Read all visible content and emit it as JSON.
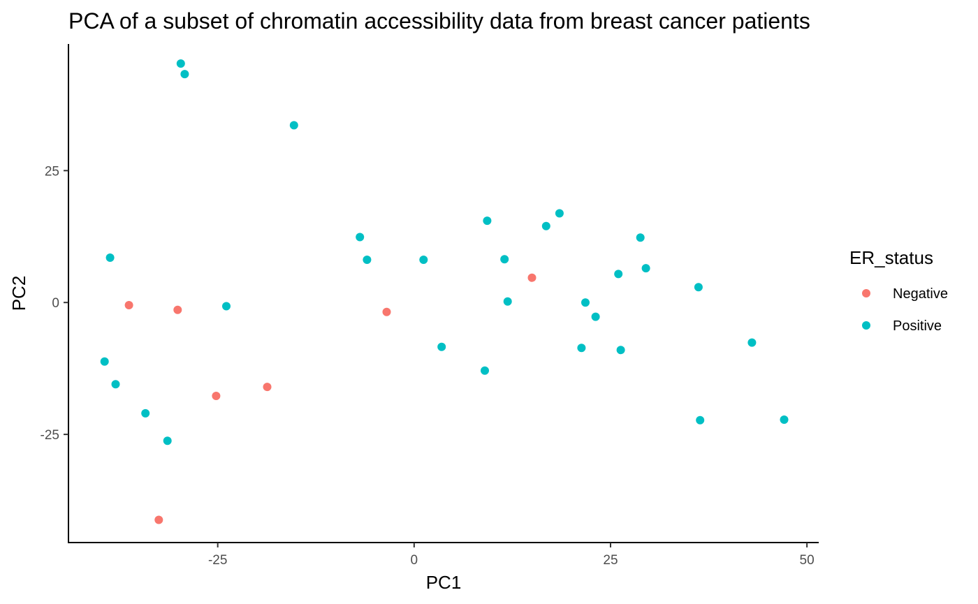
{
  "chart_data": {
    "type": "scatter",
    "title": "PCA of a subset of chromatin accessibility data from breast cancer patients",
    "xlabel": "PC1",
    "ylabel": "PC2",
    "xlim": [
      -44,
      51.5
    ],
    "ylim": [
      -45.5,
      49
    ],
    "xticks": [
      {
        "value": -25,
        "label": "-25"
      },
      {
        "value": 0,
        "label": "0"
      },
      {
        "value": 25,
        "label": "25"
      },
      {
        "value": 50,
        "label": "50"
      }
    ],
    "yticks": [
      {
        "value": -25,
        "label": "-25"
      },
      {
        "value": 0,
        "label": "0"
      },
      {
        "value": 25,
        "label": "25"
      }
    ],
    "grid": false,
    "legend": {
      "title": "ER_status",
      "position": "right"
    },
    "series": [
      {
        "name": "Negative",
        "color": "#F8766D",
        "points": [
          {
            "x": -36.3,
            "y": -0.5
          },
          {
            "x": -30.1,
            "y": -1.4
          },
          {
            "x": -25.2,
            "y": -17.7
          },
          {
            "x": -18.7,
            "y": -16.0
          },
          {
            "x": -3.5,
            "y": -1.8
          },
          {
            "x": 15.0,
            "y": 4.7
          },
          {
            "x": -32.5,
            "y": -41.2
          }
        ]
      },
      {
        "name": "Positive",
        "color": "#00BFC4",
        "points": [
          {
            "x": -29.7,
            "y": 45.3
          },
          {
            "x": -29.2,
            "y": 43.3
          },
          {
            "x": -15.3,
            "y": 33.6
          },
          {
            "x": -38.7,
            "y": 8.5
          },
          {
            "x": -23.9,
            "y": -0.7
          },
          {
            "x": -39.4,
            "y": -11.2
          },
          {
            "x": -38.0,
            "y": -15.5
          },
          {
            "x": -34.2,
            "y": -21.0
          },
          {
            "x": -31.4,
            "y": -26.2
          },
          {
            "x": -6.9,
            "y": 12.4
          },
          {
            "x": -6.0,
            "y": 8.1
          },
          {
            "x": 1.2,
            "y": 8.1
          },
          {
            "x": 3.5,
            "y": -8.4
          },
          {
            "x": 9.3,
            "y": 15.5
          },
          {
            "x": 9.0,
            "y": -12.9
          },
          {
            "x": 11.5,
            "y": 8.2
          },
          {
            "x": 11.9,
            "y": 0.2
          },
          {
            "x": 16.8,
            "y": 14.5
          },
          {
            "x": 18.5,
            "y": 16.9
          },
          {
            "x": 21.3,
            "y": -8.6
          },
          {
            "x": 21.8,
            "y": 0.0
          },
          {
            "x": 23.1,
            "y": -2.7
          },
          {
            "x": 26.0,
            "y": 5.4
          },
          {
            "x": 26.3,
            "y": -9.0
          },
          {
            "x": 28.8,
            "y": 12.3
          },
          {
            "x": 29.5,
            "y": 6.5
          },
          {
            "x": 36.2,
            "y": 2.9
          },
          {
            "x": 36.4,
            "y": -22.3
          },
          {
            "x": 43.0,
            "y": -7.6
          },
          {
            "x": 47.1,
            "y": -22.2
          }
        ]
      }
    ]
  }
}
